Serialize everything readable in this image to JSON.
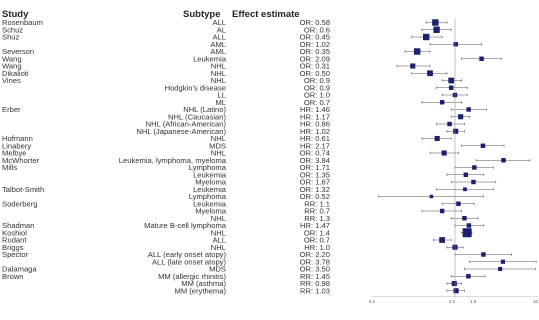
{
  "chart_data": {
    "type": "forest",
    "columns": {
      "study": "Study",
      "subtype": "Subtype",
      "estimate": "Effect estimate"
    },
    "x_scale": "log",
    "xlim": [
      0.1,
      10
    ],
    "reference_line": 1,
    "tick_labels": [
      "0.1",
      "1.0",
      "1.5",
      "10"
    ],
    "marker_color": "#1a1f6e",
    "rows": [
      {
        "study": "Rosenbaum",
        "subtype": "ALL",
        "estimate": "OR: 0.58",
        "value": 0.58,
        "ci": [
          0.45,
          0.8
        ],
        "weight": 0.6
      },
      {
        "study": "Schuz",
        "subtype": "AL",
        "estimate": "OR: 0.6",
        "value": 0.6,
        "ci": [
          0.4,
          0.9
        ],
        "weight": 0.6
      },
      {
        "study": "Shuz",
        "subtype": "ALL",
        "estimate": "OR: 0.45",
        "value": 0.45,
        "ci": [
          0.3,
          0.7
        ],
        "weight": 0.6
      },
      {
        "study": "",
        "subtype": "AML",
        "estimate": "OR: 1.02",
        "value": 1.02,
        "ci": [
          0.5,
          2.1
        ],
        "weight": 0.3
      },
      {
        "study": "Severson",
        "subtype": "AML",
        "estimate": "OR: 0.35",
        "value": 0.35,
        "ci": [
          0.25,
          0.5
        ],
        "weight": 0.6
      },
      {
        "study": "Wang",
        "subtype": "Leukemia",
        "estimate": "OR: 2.09",
        "value": 2.09,
        "ci": [
          1.2,
          3.6
        ],
        "weight": 0.3
      },
      {
        "study": "Wang",
        "subtype": "NHL",
        "estimate": "OR: 0.31",
        "value": 0.31,
        "ci": [
          0.2,
          0.5
        ],
        "weight": 0.4
      },
      {
        "study": "Dikalioti",
        "subtype": "NHL",
        "estimate": "OR: 0.50",
        "value": 0.5,
        "ci": [
          0.3,
          0.8
        ],
        "weight": 0.5
      },
      {
        "study": "Vines",
        "subtype": "NHL",
        "estimate": "OR: 0.9",
        "value": 0.9,
        "ci": [
          0.7,
          1.2
        ],
        "weight": 0.5
      },
      {
        "study": "",
        "subtype": "Hodgkin's disease",
        "estimate": "OR: 0.9",
        "value": 0.9,
        "ci": [
          0.6,
          1.4
        ],
        "weight": 0.3
      },
      {
        "study": "",
        "subtype": "LL",
        "estimate": "OR: 1.0",
        "value": 1.0,
        "ci": [
          0.7,
          1.4
        ],
        "weight": 0.3
      },
      {
        "study": "",
        "subtype": "ML",
        "estimate": "OR: 0.7",
        "value": 0.7,
        "ci": [
          0.4,
          1.2
        ],
        "weight": 0.3
      },
      {
        "study": "Erber",
        "subtype": "NHL (Latino)",
        "estimate": "HR: 1.46",
        "value": 1.46,
        "ci": [
          0.9,
          2.4
        ],
        "weight": 0.3
      },
      {
        "study": "",
        "subtype": "NHL (Caucasian)",
        "estimate": "HR: 1.17",
        "value": 1.17,
        "ci": [
          0.9,
          1.5
        ],
        "weight": 0.4
      },
      {
        "study": "",
        "subtype": "NHL (African-American)",
        "estimate": "HR: 0.86",
        "value": 0.86,
        "ci": [
          0.6,
          1.3
        ],
        "weight": 0.3
      },
      {
        "study": "",
        "subtype": "NHL (Japanese-American)",
        "estimate": "HR: 1.02",
        "value": 1.02,
        "ci": [
          0.8,
          1.3
        ],
        "weight": 0.4
      },
      {
        "study": "Hofmann",
        "subtype": "NHL",
        "estimate": "HR: 0.61",
        "value": 0.61,
        "ci": [
          0.4,
          0.9
        ],
        "weight": 0.4
      },
      {
        "study": "Linabery",
        "subtype": "MDS",
        "estimate": "HR: 2.17",
        "value": 2.17,
        "ci": [
          1.2,
          3.9
        ],
        "weight": 0.3
      },
      {
        "study": "Melbye",
        "subtype": "NHL",
        "estimate": "OR: 0.74",
        "value": 0.74,
        "ci": [
          0.5,
          1.1
        ],
        "weight": 0.4
      },
      {
        "study": "McWhorter",
        "subtype": "Leukemia, lymphoma, myeloma",
        "estimate": "OR: 3.84",
        "value": 3.84,
        "ci": [
          1.8,
          8.0
        ],
        "weight": 0.3
      },
      {
        "study": "Mills",
        "subtype": "Lymphoma",
        "estimate": "OR: 1.71",
        "value": 1.71,
        "ci": [
          1.0,
          2.9
        ],
        "weight": 0.3
      },
      {
        "study": "",
        "subtype": "Leukemia",
        "estimate": "OR: 1.35",
        "value": 1.35,
        "ci": [
          0.8,
          2.2
        ],
        "weight": 0.3
      },
      {
        "study": "",
        "subtype": "Myeloma",
        "estimate": "OR: 1.67",
        "value": 1.67,
        "ci": [
          0.9,
          3.1
        ],
        "weight": 0.3
      },
      {
        "study": "Talbot-Smith",
        "subtype": "Leukemia",
        "estimate": "OR: 1.32",
        "value": 1.32,
        "ci": [
          0.6,
          2.9
        ],
        "weight": 0.2
      },
      {
        "study": "",
        "subtype": "Lymphoma",
        "estimate": "OR: 0.52",
        "value": 0.52,
        "ci": [
          0.12,
          2.2
        ],
        "weight": 0.15
      },
      {
        "study": "Soderberg",
        "subtype": "Leukemia",
        "estimate": "RR: 1.1",
        "value": 1.1,
        "ci": [
          0.7,
          1.7
        ],
        "weight": 0.3
      },
      {
        "study": "",
        "subtype": "Myeloma",
        "estimate": "RR: 0.7",
        "value": 0.7,
        "ci": [
          0.4,
          1.2
        ],
        "weight": 0.3
      },
      {
        "study": "",
        "subtype": "NHL",
        "estimate": "RR: 1.3",
        "value": 1.3,
        "ci": [
          0.9,
          1.9
        ],
        "weight": 0.3
      },
      {
        "study": "Shadman",
        "subtype": "Mature B-cell lymphoma",
        "estimate": "HR: 1.47",
        "value": 1.47,
        "ci": [
          1.0,
          2.2
        ],
        "weight": 0.3
      },
      {
        "study": "Koshiol",
        "subtype": "NHL",
        "estimate": "OR: 1.4",
        "value": 1.4,
        "ci": [
          1.2,
          1.6
        ],
        "weight": 1.0
      },
      {
        "study": "Rudant",
        "subtype": "ALL",
        "estimate": "OR: 0.7",
        "value": 0.7,
        "ci": [
          0.55,
          0.9
        ],
        "weight": 0.5
      },
      {
        "study": "Briggs",
        "subtype": "NHL",
        "estimate": "HR: 1.0",
        "value": 1.0,
        "ci": [
          0.8,
          1.25
        ],
        "weight": 0.4
      },
      {
        "study": "Spector",
        "subtype": "ALL (early onset atopy)",
        "estimate": "OR: 2.20",
        "value": 2.2,
        "ci": [
          1.0,
          4.8
        ],
        "weight": 0.3
      },
      {
        "study": "",
        "subtype": "ALL (late onset atopy)",
        "estimate": "OR: 3.78",
        "value": 3.78,
        "ci": [
          1.5,
          9.5
        ],
        "weight": 0.25
      },
      {
        "study": "Dalamaga",
        "subtype": "MDS",
        "estimate": "OR: 3.50",
        "value": 3.5,
        "ci": [
          1.3,
          9.4
        ],
        "weight": 0.25
      },
      {
        "study": "Brown",
        "subtype": "MM (allergic rhinitis)",
        "estimate": "RR: 1.45",
        "value": 1.45,
        "ci": [
          0.9,
          2.3
        ],
        "weight": 0.3
      },
      {
        "study": "",
        "subtype": "MM (asthma)",
        "estimate": "RR: 0.98",
        "value": 0.98,
        "ci": [
          0.8,
          1.2
        ],
        "weight": 0.4
      },
      {
        "study": "",
        "subtype": "MM (erythema)",
        "estimate": "RR: 1.03",
        "value": 1.03,
        "ci": [
          0.8,
          1.3
        ],
        "weight": 0.4
      }
    ]
  }
}
